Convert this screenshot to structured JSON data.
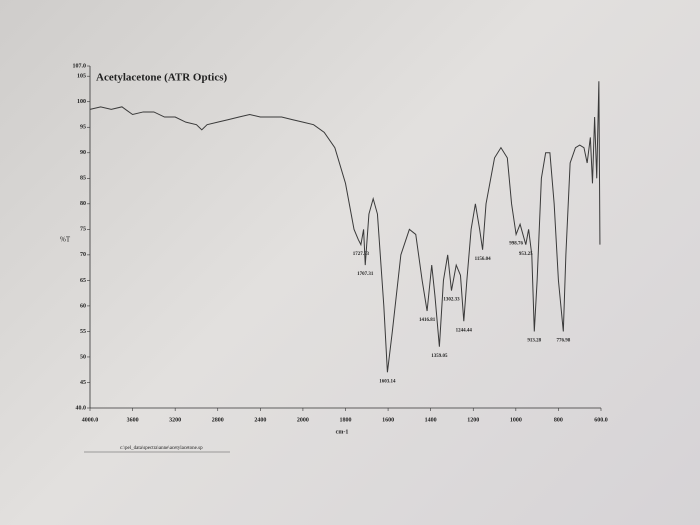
{
  "chart_data": {
    "type": "line",
    "title": "Acetylacetone (ATR Optics)",
    "ylabel": "%T",
    "xlabel": "cm-1",
    "footer": "c:\\pel_data\\spectra\\anne\\acetylacetone.sp",
    "color": "#3a3a3a",
    "xlim": [
      4000,
      600
    ],
    "xticks": [
      {
        "value": 4000,
        "label": "4000.0"
      },
      3600,
      3200,
      2800,
      2400,
      2000,
      1800,
      1600,
      1400,
      1200,
      1000,
      800,
      {
        "value": 600,
        "label": "600.0"
      }
    ],
    "ylim": [
      40,
      107
    ],
    "yticks": [
      {
        "value": 40,
        "label": "40.0"
      },
      45,
      50,
      55,
      60,
      65,
      70,
      75,
      80,
      85,
      90,
      95,
      100,
      105,
      {
        "value": 107,
        "label": "107.0"
      }
    ],
    "x": [
      4000,
      3900,
      3800,
      3700,
      3600,
      3500,
      3400,
      3300,
      3200,
      3100,
      3000,
      2950,
      2900,
      2800,
      2700,
      2600,
      2500,
      2400,
      2300,
      2200,
      2100,
      2000,
      1950,
      1900,
      1850,
      1800,
      1760,
      1740,
      1727.73,
      1715,
      1707.31,
      1690,
      1670,
      1650,
      1620,
      1603.14,
      1580,
      1540,
      1500,
      1470,
      1440,
      1416.81,
      1395,
      1380,
      1359.05,
      1340,
      1320,
      1302.33,
      1280,
      1260,
      1244.44,
      1230,
      1210,
      1190,
      1170,
      1156.04,
      1140,
      1100,
      1070,
      1040,
      1020,
      998.76,
      980,
      960,
      953.25,
      940,
      925,
      913.28,
      900,
      880,
      860,
      840,
      820,
      800,
      776.98,
      765,
      745,
      720,
      700,
      680,
      665,
      650,
      640,
      630,
      620,
      610,
      605
    ],
    "values": [
      98.5,
      99,
      98.5,
      99,
      97.5,
      98,
      98,
      97,
      97,
      96,
      95.5,
      94.5,
      95.5,
      96,
      96.5,
      97,
      97.5,
      97,
      97,
      97,
      96.5,
      96,
      95.5,
      94,
      91,
      84,
      75,
      73,
      72,
      75,
      68,
      78,
      81,
      78,
      60,
      47,
      55,
      70,
      75,
      74,
      65,
      59,
      68,
      62,
      52,
      65,
      70,
      63,
      68,
      66,
      57,
      65,
      75,
      80,
      75,
      71,
      80,
      89,
      91,
      89,
      80,
      74,
      76,
      73,
      72,
      75,
      70,
      55,
      65,
      85,
      90,
      90,
      80,
      65,
      55,
      70,
      88,
      91,
      91.5,
      91,
      88,
      93,
      84,
      97,
      85,
      104,
      72
    ],
    "peaks": [
      1727.73,
      1707.31,
      1603.14,
      1416.81,
      1359.05,
      1302.33,
      1244.44,
      1156.04,
      998.76,
      953.25,
      913.28,
      776.98
    ]
  }
}
